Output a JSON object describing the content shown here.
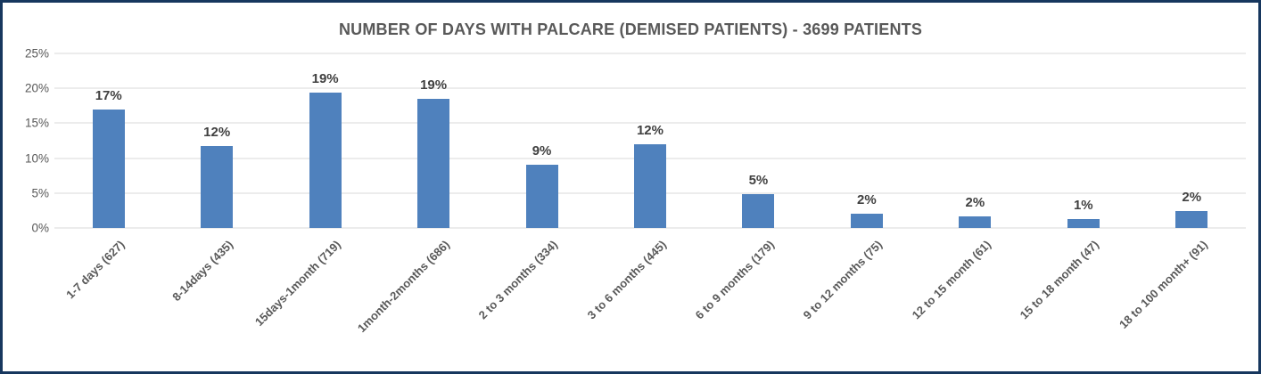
{
  "title": "NUMBER OF DAYS WITH PALCARE (DEMISED PATIENTS) - 3699 PATIENTS",
  "total_patients_shown_in_title": 3699,
  "colors": {
    "bar": "#4F81BD",
    "frame_border": "#17375E",
    "gridline": "#D9D9D9",
    "title_text": "#595959",
    "axis_text": "#595959",
    "data_label_text": "#404040",
    "background": "#FFFFFF"
  },
  "chart_data": {
    "type": "bar",
    "title": "NUMBER OF DAYS WITH PALCARE (DEMISED PATIENTS) - 3699 PATIENTS",
    "categories": [
      "1-7 days (627)",
      "8-14days (435)",
      "15days-1month (719)",
      "1month-2months (686)",
      "2 to 3 months (334)",
      "3 to 6 months (445)",
      "6 to 9 months (179)",
      "9 to 12 months (75)",
      "12 to 15 month (61)",
      "15 to 18 month (47)",
      "18 to 100 month+ (91)"
    ],
    "counts": [
      627,
      435,
      719,
      686,
      334,
      445,
      179,
      75,
      61,
      47,
      91
    ],
    "values": [
      16.95,
      11.76,
      19.44,
      18.55,
      9.03,
      12.03,
      4.84,
      2.03,
      1.65,
      1.27,
      2.46
    ],
    "data_labels": [
      "17%",
      "12%",
      "19%",
      "19%",
      "9%",
      "12%",
      "5%",
      "2%",
      "2%",
      "1%",
      "2%"
    ],
    "xlabel": "",
    "ylabel": "",
    "ylim": [
      0,
      25
    ],
    "y_ticks": [
      "25%",
      "20%",
      "15%",
      "10%",
      "5%",
      "0%"
    ],
    "grid": true,
    "legend": "none",
    "bar_color": "#4F81BD",
    "x_label_rotation_deg": 45
  }
}
